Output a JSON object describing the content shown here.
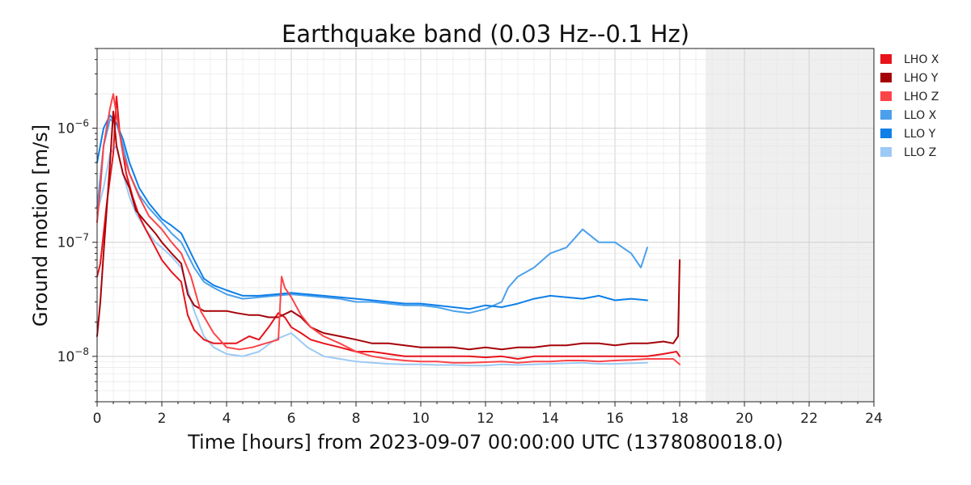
{
  "chart_data": {
    "type": "line",
    "title": "Earthquake band (0.03 Hz--0.1 Hz)",
    "xlabel": "Time [hours] from 2023-09-07 00:00:00 UTC (1378080018.0)",
    "ylabel": "Ground motion [m/s]",
    "xlim": [
      0,
      24
    ],
    "ylim": [
      4e-09,
      5e-06
    ],
    "yscale": "log",
    "grid": true,
    "legend_position": "right",
    "x_ticks": [
      "0",
      "2",
      "4",
      "6",
      "8",
      "10",
      "12",
      "14",
      "16",
      "18",
      "20",
      "22",
      "24"
    ],
    "y_ticks": [
      {
        "base": "10",
        "exp": "−8"
      },
      {
        "base": "10",
        "exp": "−7"
      },
      {
        "base": "10",
        "exp": "−6"
      }
    ],
    "shaded_region": {
      "x_start": 18.8,
      "x_end": 24,
      "color": "#efefef"
    },
    "series": [
      {
        "name": "LHO X",
        "color": "#e8131b",
        "x": [
          0,
          0.1,
          0.3,
          0.5,
          0.6,
          0.7,
          0.9,
          1.1,
          1.3,
          1.5,
          1.8,
          2,
          2.3,
          2.6,
          2.8,
          3,
          3.3,
          3.6,
          4,
          4.3,
          4.7,
          5,
          5.3,
          5.6,
          5.8,
          6,
          6.3,
          6.6,
          7,
          7.5,
          8,
          8.5,
          9,
          9.5,
          10,
          10.5,
          11,
          11.5,
          12,
          12.5,
          13,
          13.5,
          14,
          14.5,
          15,
          15.5,
          16,
          16.5,
          17,
          17.5,
          17.9,
          18
        ],
        "y": [
          5e-08,
          6.5e-08,
          2.2e-07,
          6e-07,
          1.9e-06,
          9e-07,
          4e-07,
          2.5e-07,
          1.7e-07,
          1.3e-07,
          9e-08,
          7e-08,
          5.5e-08,
          4.5e-08,
          2.3e-08,
          1.7e-08,
          1.4e-08,
          1.3e-08,
          1.3e-08,
          1.3e-08,
          1.5e-08,
          1.4e-08,
          1.8e-08,
          2.4e-08,
          2.2e-08,
          1.8e-08,
          1.6e-08,
          1.4e-08,
          1.3e-08,
          1.2e-08,
          1.1e-08,
          1.1e-08,
          1.05e-08,
          1e-08,
          1e-08,
          1e-08,
          1e-08,
          1e-08,
          9.8e-09,
          1e-08,
          9.5e-09,
          1e-08,
          1e-08,
          1e-08,
          1e-08,
          1e-08,
          1e-08,
          1e-08,
          1e-08,
          1.05e-08,
          1.1e-08,
          1e-08
        ]
      },
      {
        "name": "LHO Y",
        "color": "#a50208",
        "x": [
          0,
          0.1,
          0.2,
          0.4,
          0.5,
          0.6,
          0.8,
          1,
          1.2,
          1.5,
          1.8,
          2,
          2.3,
          2.6,
          2.8,
          3,
          3.3,
          3.6,
          4,
          4.3,
          4.7,
          5,
          5.3,
          5.6,
          6,
          6.3,
          6.6,
          7,
          7.5,
          8,
          8.5,
          9,
          9.5,
          10,
          10.5,
          11,
          11.5,
          12,
          12.5,
          13,
          13.5,
          14,
          14.5,
          15,
          15.5,
          16,
          16.5,
          17,
          17.5,
          17.8,
          17.95,
          18
        ],
        "y": [
          1.5e-08,
          3e-08,
          8e-08,
          5e-07,
          1.4e-06,
          7e-07,
          4e-07,
          3e-07,
          1.9e-07,
          1.5e-07,
          1.2e-07,
          1e-07,
          8e-08,
          6.5e-08,
          3.5e-08,
          2.8e-08,
          2.5e-08,
          2.5e-08,
          2.5e-08,
          2.4e-08,
          2.3e-08,
          2.3e-08,
          2.2e-08,
          2.2e-08,
          2.5e-08,
          2.2e-08,
          1.8e-08,
          1.6e-08,
          1.5e-08,
          1.4e-08,
          1.3e-08,
          1.3e-08,
          1.25e-08,
          1.2e-08,
          1.2e-08,
          1.2e-08,
          1.15e-08,
          1.2e-08,
          1.15e-08,
          1.2e-08,
          1.2e-08,
          1.25e-08,
          1.25e-08,
          1.3e-08,
          1.3e-08,
          1.25e-08,
          1.3e-08,
          1.3e-08,
          1.35e-08,
          1.3e-08,
          1.5e-08,
          7e-08
        ]
      },
      {
        "name": "LHO Z",
        "color": "#fb4448",
        "x": [
          0,
          0.1,
          0.2,
          0.4,
          0.5,
          0.6,
          0.8,
          1,
          1.3,
          1.6,
          2,
          2.3,
          2.6,
          2.9,
          3.2,
          3.6,
          4,
          4.4,
          4.8,
          5.2,
          5.6,
          5.7,
          5.8,
          6,
          6.3,
          6.6,
          7,
          7.5,
          8,
          8.5,
          9,
          9.5,
          10,
          10.5,
          11,
          11.5,
          12,
          12.5,
          13,
          13.5,
          14,
          14.5,
          15,
          15.5,
          16,
          16.5,
          17,
          17.5,
          17.8,
          18
        ],
        "y": [
          1.5e-07,
          3e-07,
          7e-07,
          1.5e-06,
          2e-06,
          1.3e-06,
          6e-07,
          4e-07,
          2.5e-07,
          1.7e-07,
          1.3e-07,
          1e-07,
          8e-08,
          5e-08,
          2.5e-08,
          1.6e-08,
          1.2e-08,
          1.15e-08,
          1.2e-08,
          1.3e-08,
          1.4e-08,
          5e-08,
          4e-08,
          3.3e-08,
          2.3e-08,
          1.8e-08,
          1.5e-08,
          1.3e-08,
          1.1e-08,
          1e-08,
          9.5e-09,
          9.2e-09,
          9e-09,
          9e-09,
          8.8e-09,
          8.8e-09,
          8.9e-09,
          9e-09,
          8.8e-09,
          9e-09,
          9e-09,
          9.2e-09,
          9.2e-09,
          9e-09,
          9.2e-09,
          9.3e-09,
          9.5e-09,
          9.5e-09,
          9.5e-09,
          8.5e-09
        ]
      },
      {
        "name": "LLO X",
        "color": "#4ba0ec",
        "x": [
          0,
          0.2,
          0.4,
          0.6,
          0.8,
          1,
          1.3,
          1.6,
          2,
          2.3,
          2.6,
          3,
          3.3,
          3.6,
          4,
          4.5,
          5,
          5.5,
          6,
          6.5,
          7,
          7.5,
          8,
          8.5,
          9,
          9.5,
          10,
          10.5,
          11,
          11.5,
          12,
          12.5,
          12.7,
          13,
          13.5,
          14,
          14.5,
          15,
          15.5,
          16,
          16.5,
          16.8,
          17
        ],
        "y": [
          2e-07,
          7e-07,
          1.2e-06,
          1.1e-06,
          7e-07,
          4e-07,
          2.6e-07,
          2e-07,
          1.5e-07,
          1.2e-07,
          1e-07,
          6e-08,
          4.5e-08,
          4e-08,
          3.5e-08,
          3.2e-08,
          3.3e-08,
          3.4e-08,
          3.5e-08,
          3.4e-08,
          3.3e-08,
          3.2e-08,
          3e-08,
          3e-08,
          2.9e-08,
          2.8e-08,
          2.8e-08,
          2.7e-08,
          2.5e-08,
          2.4e-08,
          2.6e-08,
          3e-08,
          4e-08,
          5e-08,
          6e-08,
          8e-08,
          9e-08,
          1.3e-07,
          1e-07,
          1e-07,
          8e-08,
          6e-08,
          9e-08
        ]
      },
      {
        "name": "LLO Y",
        "color": "#0f7fe8",
        "x": [
          0,
          0.2,
          0.4,
          0.6,
          0.8,
          1,
          1.3,
          1.6,
          2,
          2.3,
          2.6,
          3,
          3.3,
          3.6,
          4,
          4.5,
          5,
          5.5,
          6,
          6.5,
          7,
          7.5,
          8,
          8.5,
          9,
          9.5,
          10,
          10.5,
          11,
          11.5,
          12,
          12.5,
          13,
          13.5,
          14,
          14.5,
          15,
          15.5,
          16,
          16.5,
          17
        ],
        "y": [
          5e-07,
          1e-06,
          1.3e-06,
          1.1e-06,
          8e-07,
          5e-07,
          3e-07,
          2.2e-07,
          1.6e-07,
          1.4e-07,
          1.2e-07,
          7e-08,
          4.8e-08,
          4.2e-08,
          3.8e-08,
          3.4e-08,
          3.4e-08,
          3.5e-08,
          3.6e-08,
          3.5e-08,
          3.4e-08,
          3.3e-08,
          3.2e-08,
          3.1e-08,
          3e-08,
          2.9e-08,
          2.9e-08,
          2.8e-08,
          2.7e-08,
          2.6e-08,
          2.8e-08,
          2.7e-08,
          2.9e-08,
          3.2e-08,
          3.4e-08,
          3.3e-08,
          3.2e-08,
          3.4e-08,
          3.1e-08,
          3.2e-08,
          3.1e-08
        ]
      },
      {
        "name": "LLO Z",
        "color": "#9ccaf5",
        "x": [
          0,
          0.2,
          0.4,
          0.6,
          0.8,
          1,
          1.2,
          1.5,
          1.8,
          2,
          2.3,
          2.6,
          3,
          3.3,
          3.6,
          4,
          4.5,
          5,
          5.5,
          6,
          6.5,
          7,
          7.5,
          8,
          8.5,
          9,
          9.5,
          10,
          10.5,
          11,
          11.5,
          12,
          12.5,
          13,
          13.5,
          14,
          14.5,
          15,
          15.5,
          16,
          16.5,
          17
        ],
        "y": [
          1.8e-07,
          3e-07,
          6e-07,
          7e-07,
          4e-07,
          2.5e-07,
          1.8e-07,
          1.3e-07,
          1e-07,
          9e-08,
          7.5e-08,
          6e-08,
          2.5e-08,
          1.5e-08,
          1.2e-08,
          1.05e-08,
          1e-08,
          1.1e-08,
          1.4e-08,
          1.6e-08,
          1.2e-08,
          1e-08,
          9.5e-09,
          9e-09,
          8.8e-09,
          8.6e-09,
          8.5e-09,
          8.5e-09,
          8.4e-09,
          8.4e-09,
          8.3e-09,
          8.3e-09,
          8.5e-09,
          8.4e-09,
          8.5e-09,
          8.6e-09,
          8.7e-09,
          8.8e-09,
          8.6e-09,
          8.6e-09,
          8.7e-09,
          8.8e-09
        ]
      }
    ]
  }
}
